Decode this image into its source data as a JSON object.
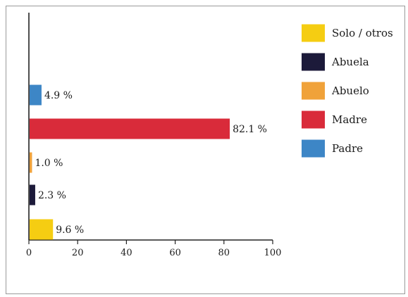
{
  "chart_data": {
    "type": "bar",
    "orientation": "horizontal",
    "categories": [
      "Padre",
      "Madre",
      "Abuelo",
      "Abuela",
      "Solo / otros"
    ],
    "values": [
      4.9,
      82.1,
      1.0,
      2.3,
      9.6
    ],
    "labels": [
      "4.9 %",
      "82.1 %",
      "1.0 %",
      "2.3 %",
      "9.6 %"
    ],
    "colors": [
      "#3d86c6",
      "#d92b3a",
      "#f0a23a",
      "#1c1a3a",
      "#f5cd12"
    ],
    "xlim": [
      0,
      100
    ],
    "xticks": [
      "0",
      "20",
      "40",
      "60",
      "80",
      "100"
    ],
    "xtick_values": [
      0,
      20,
      40,
      60,
      80,
      100
    ],
    "legend": {
      "placement": "right",
      "entries": [
        {
          "label": "Solo / otros",
          "color": "#f5cd12"
        },
        {
          "label": "Abuela",
          "color": "#1c1a3a"
        },
        {
          "label": "Abuelo",
          "color": "#f0a23a"
        },
        {
          "label": "Madre",
          "color": "#d92b3a"
        },
        {
          "label": "Padre",
          "color": "#3d86c6"
        }
      ]
    },
    "grid": false
  }
}
